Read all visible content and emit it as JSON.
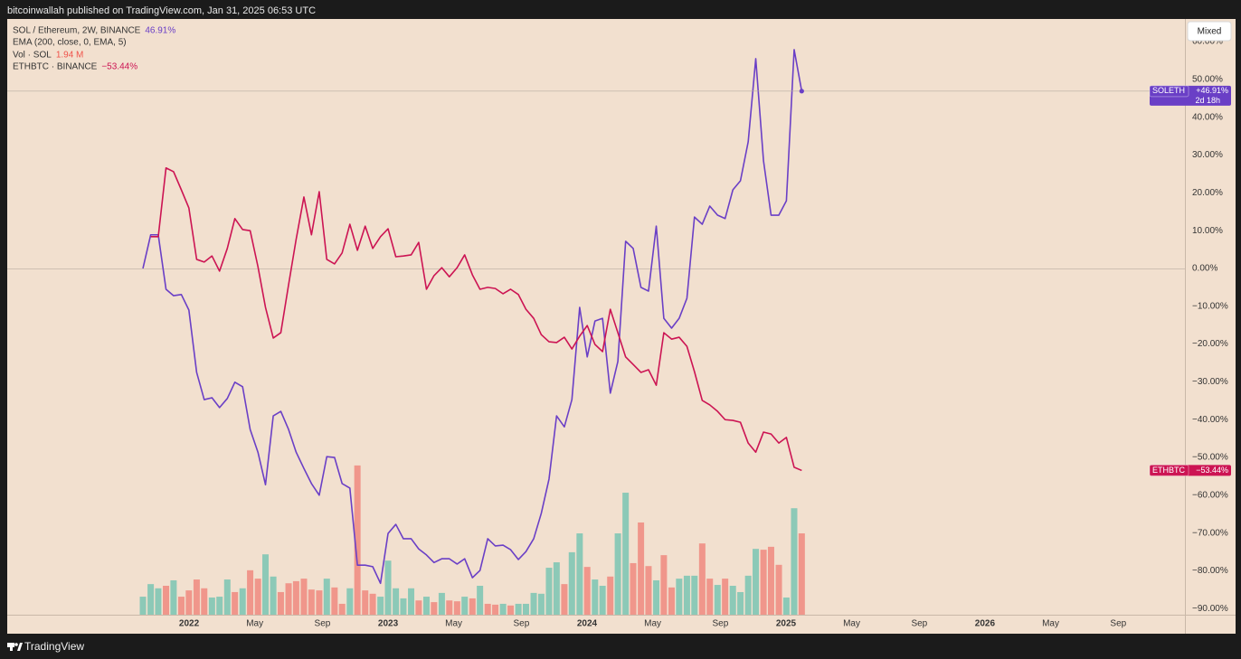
{
  "header": "bitcoinwallah published on TradingView.com, Jan 31, 2025 06:53 UTC",
  "footer": "TradingView",
  "button": "Mixed",
  "chart_data": {
    "type": "line",
    "x": [
      2021.768,
      2021.807,
      2021.845,
      2021.884,
      2021.922,
      2021.961,
      2021.999,
      2022.038,
      2022.076,
      2022.115,
      2022.153,
      2022.192,
      2022.23,
      2022.269,
      2022.307,
      2022.346,
      2022.384,
      2022.423,
      2022.461,
      2022.5,
      2022.538,
      2022.577,
      2022.615,
      2022.654,
      2022.692,
      2022.731,
      2022.769,
      2022.808,
      2022.846,
      2022.885,
      2022.923,
      2022.962,
      2023.0,
      2023.039,
      2023.077,
      2023.116,
      2023.154,
      2023.193,
      2023.231,
      2023.27,
      2023.308,
      2023.347,
      2023.385,
      2023.424,
      2023.462,
      2023.501,
      2023.539,
      2023.578,
      2023.616,
      2023.655,
      2023.693,
      2023.732,
      2023.77,
      2023.809,
      2023.847,
      2023.886,
      2023.924,
      2023.963,
      2024.001,
      2024.04,
      2024.078,
      2024.117,
      2024.155,
      2024.194,
      2024.232,
      2024.271,
      2024.309,
      2024.348,
      2024.386,
      2024.425,
      2024.463,
      2024.502,
      2024.54,
      2024.579,
      2024.617,
      2024.656,
      2024.694,
      2024.733,
      2024.771,
      2024.81,
      2024.848,
      2024.887,
      2024.925,
      2024.964,
      2025.002,
      2025.041,
      2025.079
    ],
    "xlim": [
      2021.086,
      2027.005
    ],
    "xticks": [
      2022,
      {
        "value": 2022.33,
        "label": "May"
      },
      {
        "value": 2022.67,
        "label": "Sep"
      },
      2023,
      {
        "value": 2023.33,
        "label": "May"
      },
      {
        "value": 2023.67,
        "label": "Sep"
      },
      2024,
      {
        "value": 2024.33,
        "label": "May"
      },
      {
        "value": 2024.67,
        "label": "Sep"
      },
      2025,
      {
        "value": 2025.33,
        "label": "May"
      },
      {
        "value": 2025.67,
        "label": "Sep"
      },
      2026,
      {
        "value": 2026.33,
        "label": "May"
      },
      {
        "value": 2026.67,
        "label": "Sep"
      }
    ],
    "ylim": [
      -91.6,
      66
    ],
    "yticks": [
      {
        "value": -90,
        "label": "−90.00%"
      },
      {
        "value": -80,
        "label": "−80.00%"
      },
      {
        "value": -70,
        "label": "−70.00%"
      },
      {
        "value": -60,
        "label": "−60.00%"
      },
      {
        "value": -50,
        "label": "−50.00%"
      },
      {
        "value": -40,
        "label": "−40.00%"
      },
      {
        "value": -30,
        "label": "−30.00%"
      },
      {
        "value": -20,
        "label": "−20.00%"
      },
      {
        "value": -10,
        "label": "−10.00%"
      },
      {
        "value": 0,
        "label": "0.00%"
      },
      {
        "value": 10,
        "label": "10.00%"
      },
      {
        "value": 20,
        "label": "20.00%"
      },
      {
        "value": 30,
        "label": "30.00%"
      },
      {
        "value": 40,
        "label": "40.00%"
      },
      {
        "value": 50,
        "label": "50.00%"
      },
      {
        "value": 60,
        "label": "60.00%"
      }
    ],
    "grid": false,
    "series": [
      {
        "name": "SOL / Ethereum, 2W, BINANCE",
        "symbol": "SOLETH",
        "color": "#6a3fc6",
        "last_label": "46.91%",
        "badge_label": "+46.91%",
        "countdown": "2d 18h",
        "values": [
          0,
          8.9,
          8.9,
          -5.5,
          -7.2,
          -6.9,
          -11.0,
          -27.5,
          -34.7,
          -34.2,
          -36.8,
          -34.4,
          -30.1,
          -31.3,
          -42.6,
          -48.6,
          -57.2,
          -39.0,
          -37.8,
          -42.6,
          -48.6,
          -52.9,
          -56.9,
          -60.0,
          -49.8,
          -50.0,
          -56.9,
          -58.1,
          -78.5,
          -78.5,
          -78.9,
          -83.3,
          -70.1,
          -67.7,
          -71.5,
          -71.5,
          -74.2,
          -75.8,
          -77.8,
          -76.8,
          -76.8,
          -78.2,
          -76.8,
          -81.8,
          -79.9,
          -71.5,
          -73.4,
          -73.2,
          -74.4,
          -77.0,
          -74.9,
          -71.5,
          -64.8,
          -55.7,
          -39.0,
          -41.9,
          -34.7,
          -10.3,
          -23.4,
          -13.9,
          -13.2,
          -33.0,
          -24.6,
          7.2,
          5.3,
          -5.0,
          -6.0,
          11.2,
          -13.2,
          -15.8,
          -13.2,
          -7.9,
          13.6,
          11.7,
          16.5,
          14.1,
          13.2,
          20.8,
          23.2,
          33.5,
          55.5,
          28.5,
          14.1,
          14.1,
          17.9,
          57.9,
          46.91
        ]
      },
      {
        "name": "ETHBTC · BINANCE",
        "symbol": "ETHBTC",
        "color": "#cc1453",
        "last_label": "−53.44%",
        "badge_label": "−53.44%",
        "values": [
          null,
          8.4,
          8.4,
          26.6,
          25.6,
          20.8,
          16.0,
          2.4,
          1.7,
          3.3,
          -0.7,
          5.3,
          13.2,
          10.3,
          10.0,
          0.5,
          -10.3,
          -18.4,
          -17.0,
          -4.3,
          7.7,
          18.9,
          8.9,
          20.3,
          2.4,
          1.2,
          4.1,
          11.7,
          4.8,
          11.2,
          5.3,
          8.4,
          10.5,
          3.1,
          3.3,
          3.6,
          6.9,
          -5.5,
          -1.9,
          0.2,
          -2.2,
          0.2,
          3.6,
          -1.7,
          -5.5,
          -5.0,
          -5.3,
          -6.7,
          -5.5,
          -6.9,
          -10.8,
          -13.2,
          -17.5,
          -19.4,
          -19.6,
          -18.2,
          -21.3,
          -17.9,
          -15.1,
          -20.1,
          -22.0,
          -10.8,
          -17.0,
          -23.4,
          -25.4,
          -27.5,
          -26.8,
          -30.9,
          -17.0,
          -18.7,
          -18.2,
          -20.6,
          -27.3,
          -34.9,
          -36.1,
          -37.8,
          -40.0,
          -40.2,
          -40.7,
          -46.2,
          -48.6,
          -43.3,
          -43.8,
          -46.2,
          -44.7,
          -52.6,
          -53.44
        ]
      }
    ],
    "indicator": "EMA (200, close, 0, EMA, 5)",
    "volume": {
      "name": "Vol · SOL",
      "last_label": "1.94 M",
      "label_color": "#f0524a",
      "vlim": [
        0,
        14.21
      ],
      "values": [
        0.43,
        0.73,
        0.63,
        0.69,
        0.82,
        0.43,
        0.58,
        0.84,
        0.63,
        0.41,
        0.43,
        0.84,
        0.54,
        0.63,
        1.06,
        0.86,
        1.44,
        0.91,
        0.54,
        0.75,
        0.8,
        0.86,
        0.6,
        0.58,
        0.86,
        0.65,
        0.26,
        0.63,
        3.56,
        0.58,
        0.5,
        0.43,
        1.29,
        0.63,
        0.39,
        0.63,
        0.34,
        0.43,
        0.3,
        0.52,
        0.34,
        0.32,
        0.43,
        0.39,
        0.69,
        0.26,
        0.24,
        0.26,
        0.22,
        0.26,
        0.26,
        0.52,
        0.5,
        1.12,
        1.25,
        0.73,
        1.49,
        1.94,
        1.14,
        0.84,
        0.69,
        0.91,
        1.94,
        2.91,
        1.23,
        2.2,
        1.16,
        0.82,
        1.42,
        0.65,
        0.86,
        0.93,
        0.93,
        1.7,
        0.86,
        0.71,
        0.86,
        0.69,
        0.54,
        0.93,
        1.57,
        1.55,
        1.62,
        1.19,
        0.41,
        2.54,
        1.94
      ],
      "colors": [
        "#8cc9b7",
        "#8cc9b7",
        "#8cc9b7",
        "#f0968b",
        "#8cc9b7",
        "#f0968b",
        "#f0968b",
        "#f0968b",
        "#f0968b",
        "#8cc9b7",
        "#8cc9b7",
        "#8cc9b7",
        "#f0968b",
        "#8cc9b7",
        "#f0968b",
        "#f0968b",
        "#8cc9b7",
        "#8cc9b7",
        "#f0968b",
        "#f0968b",
        "#f0968b",
        "#f0968b",
        "#f0968b",
        "#f0968b",
        "#8cc9b7",
        "#f0968b",
        "#f0968b",
        "#8cc9b7",
        "#f0968b",
        "#f0968b",
        "#f0968b",
        "#8cc9b7",
        "#8cc9b7",
        "#8cc9b7",
        "#8cc9b7",
        "#8cc9b7",
        "#f0968b",
        "#8cc9b7",
        "#f0968b",
        "#8cc9b7",
        "#f0968b",
        "#f0968b",
        "#8cc9b7",
        "#f0968b",
        "#8cc9b7",
        "#f0968b",
        "#f0968b",
        "#8cc9b7",
        "#f0968b",
        "#8cc9b7",
        "#8cc9b7",
        "#8cc9b7",
        "#8cc9b7",
        "#8cc9b7",
        "#8cc9b7",
        "#f0968b",
        "#8cc9b7",
        "#8cc9b7",
        "#f0968b",
        "#8cc9b7",
        "#8cc9b7",
        "#f0968b",
        "#8cc9b7",
        "#8cc9b7",
        "#f0968b",
        "#f0968b",
        "#f0968b",
        "#8cc9b7",
        "#f0968b",
        "#f0968b",
        "#8cc9b7",
        "#8cc9b7",
        "#8cc9b7",
        "#f0968b",
        "#f0968b",
        "#8cc9b7",
        "#f0968b",
        "#8cc9b7",
        "#8cc9b7",
        "#8cc9b7",
        "#8cc9b7",
        "#f0968b",
        "#f0968b",
        "#f0968b",
        "#8cc9b7",
        "#8cc9b7",
        "#f0968b"
      ]
    }
  }
}
